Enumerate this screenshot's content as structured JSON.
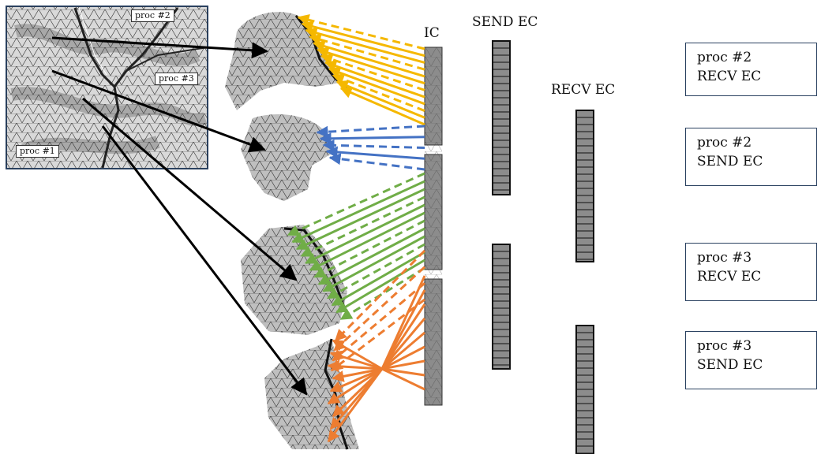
{
  "labels": {
    "ic": "IC",
    "send_ec": "SEND EC",
    "recv_ec": "RECV EC"
  },
  "mesh_tags": [
    "proc #2",
    "proc #3",
    "proc #1"
  ],
  "boxes": [
    {
      "line1": "proc #2",
      "line2": "RECV EC"
    },
    {
      "line1": "proc #2",
      "line2": "SEND EC"
    },
    {
      "line1": "proc #3",
      "line2": "RECV EC"
    },
    {
      "line1": "proc #3",
      "line2": "SEND EC"
    }
  ],
  "colors": {
    "yellow": "#f5b800",
    "blue": "#4472c4",
    "green": "#70ad47",
    "orange": "#ed7d31",
    "cell": "#8c8c8c",
    "box_border": "#2a4160"
  }
}
